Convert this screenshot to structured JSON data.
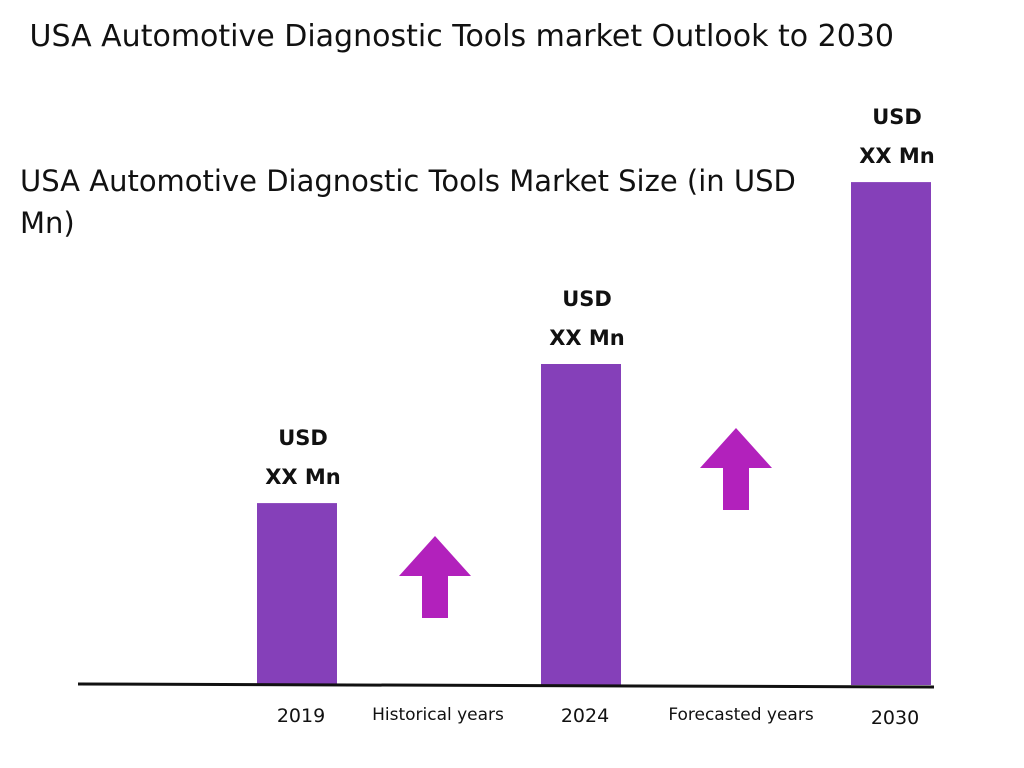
{
  "title": " USA Automotive Diagnostic Tools market Outlook to 2030",
  "subtitle": "USA Automotive Diagnostic Tools Market Size (in USD Mn)",
  "colors": {
    "bar": "#8540b9",
    "arrow": "#b221bc",
    "axis": "#111111"
  },
  "icons": [
    "up-arrow-icon",
    "up-arrow-icon"
  ],
  "periods": [
    "Historical years",
    "Forecasted years"
  ],
  "chart_data": {
    "type": "bar",
    "categories": [
      "2019",
      "2024",
      "2030"
    ],
    "values": [
      17,
      30,
      47
    ],
    "ylim": [
      0,
      50
    ],
    "data_labels": [
      [
        "USD",
        "XX Mn"
      ],
      [
        "USD",
        "XX Mn"
      ],
      [
        "USD",
        "XX Mn"
      ]
    ],
    "grid": false,
    "legend": "none"
  }
}
